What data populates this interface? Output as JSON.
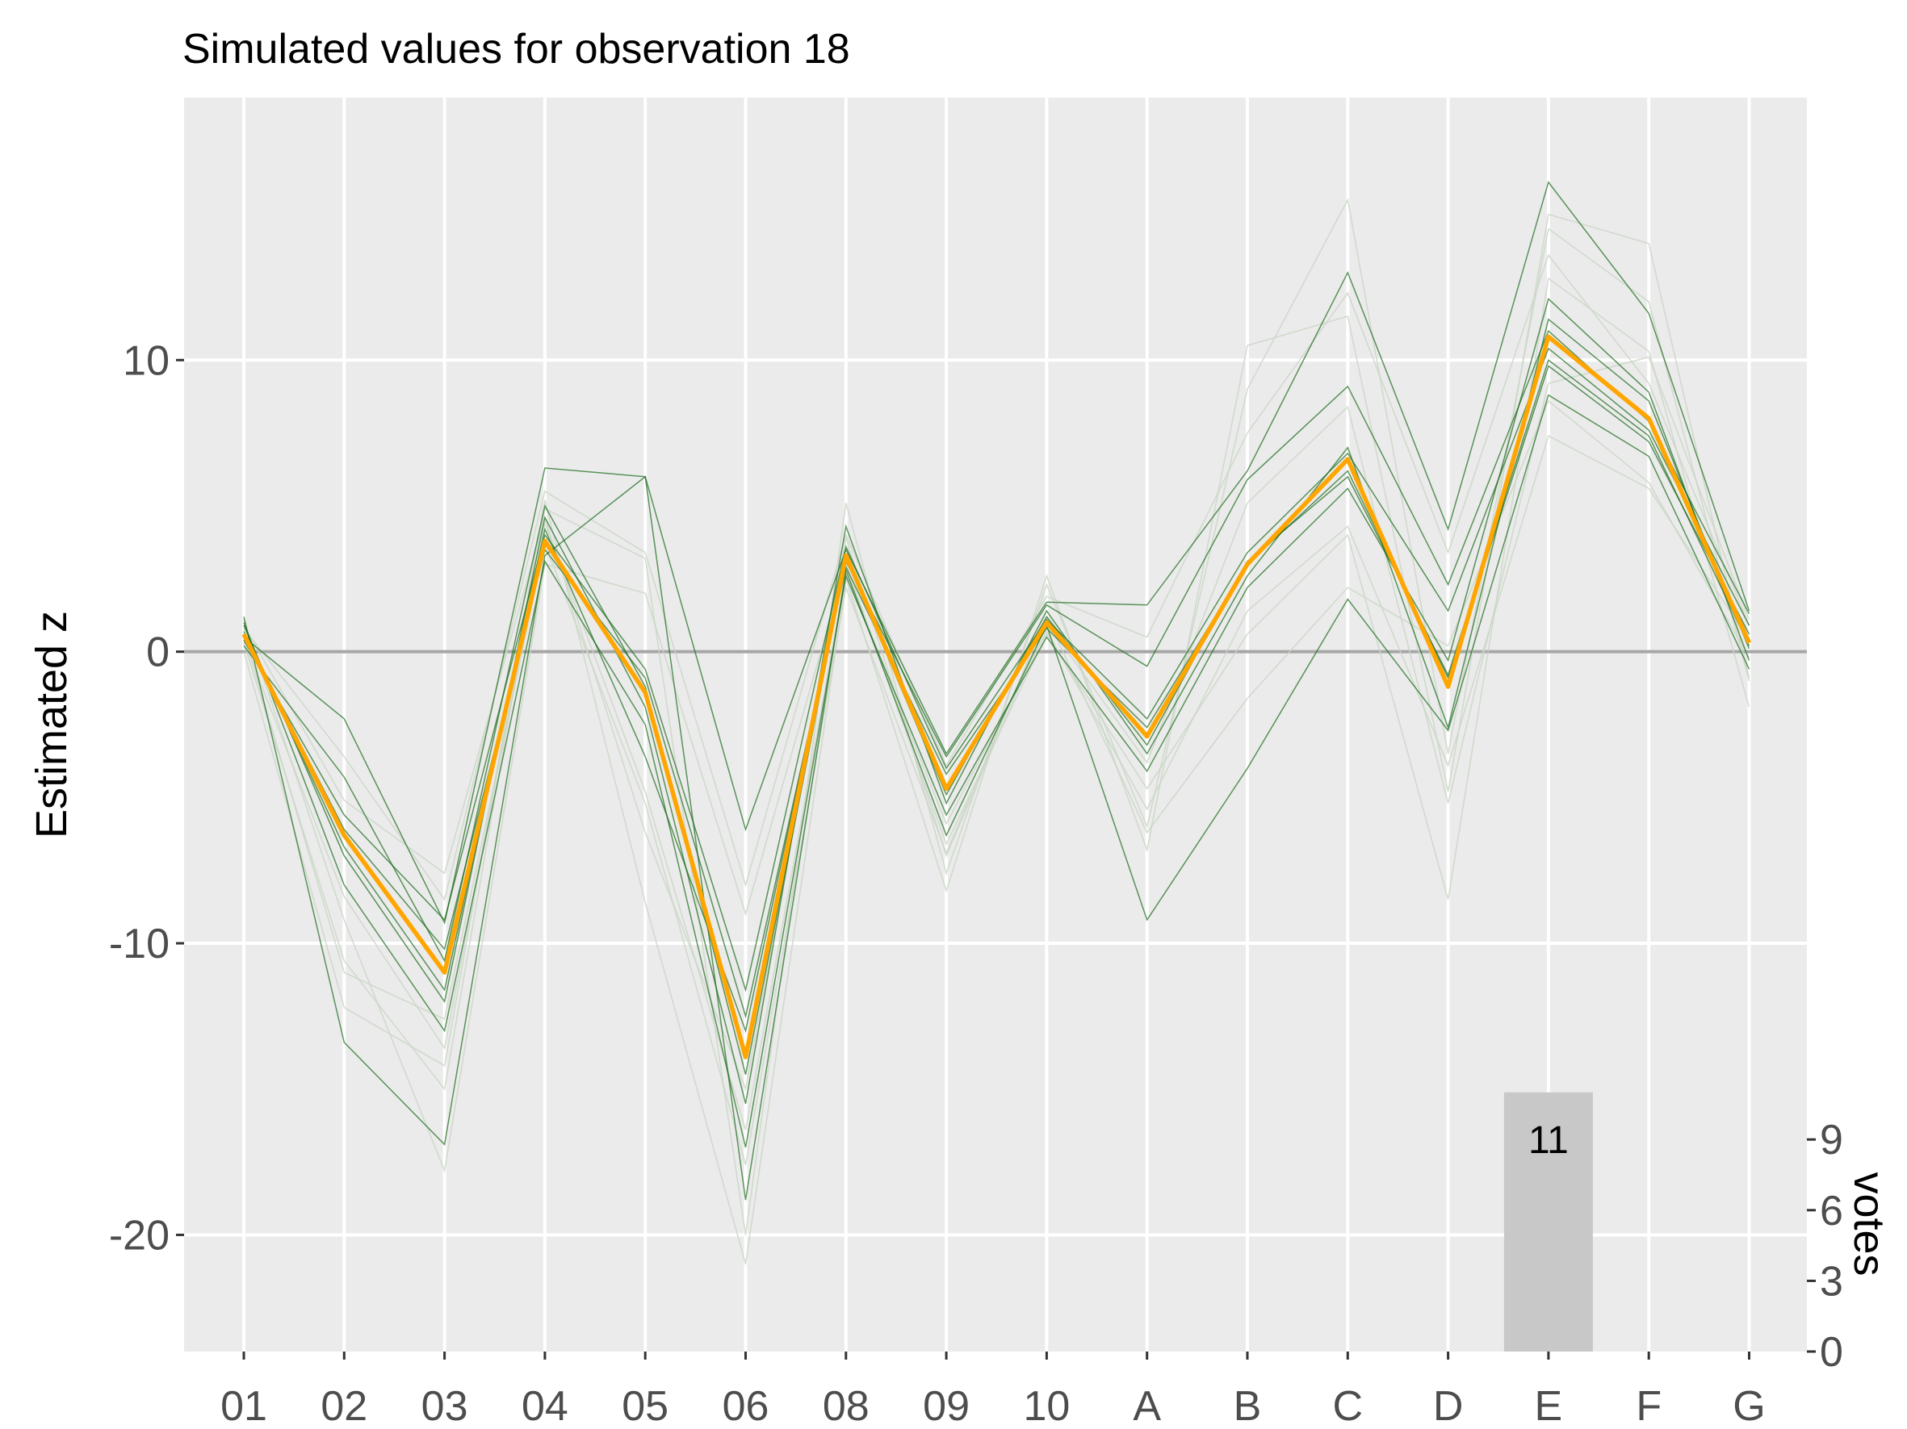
{
  "chart_data": {
    "type": "line",
    "title": "Simulated values for observation 18",
    "ylabel": "Estimated z",
    "y2label": "votes",
    "x": [
      "01",
      "02",
      "03",
      "04",
      "05",
      "06",
      "08",
      "09",
      "10",
      "A",
      "B",
      "C",
      "D",
      "E",
      "F",
      "G"
    ],
    "y_ticks": [
      10,
      0,
      -10,
      -20
    ],
    "y_tick_labels": [
      "10",
      "0",
      "-10",
      "-20"
    ],
    "ylim": [
      -24,
      19
    ],
    "y2_ticks": [
      0,
      3,
      6,
      9
    ],
    "y2_tick_labels": [
      "0",
      "3",
      "6",
      "9"
    ],
    "y2lim": [
      0,
      11
    ],
    "grid": true,
    "reference_line": 0,
    "colors": {
      "panel": "#ebebeb",
      "grid": "#ffffff",
      "reference": "#a6a6a6",
      "highlight": "#ffa500",
      "sim_dark": "#1a6b1a",
      "sim_light": "#c9d6c6",
      "bar": "#c8c8c8"
    },
    "highlight_series": [
      0.6,
      -6.3,
      -11.0,
      3.8,
      -1.4,
      -13.9,
      3.3,
      -4.7,
      1.0,
      -2.9,
      3.0,
      6.6,
      -1.2,
      10.8,
      8.0,
      0.3
    ],
    "simulations_dark": [
      [
        0.6,
        -6.1,
        -10.2,
        3.5,
        -0.9,
        -12.5,
        2.9,
        -4.2,
        0.8,
        -2.6,
        3.0,
        6.2,
        -0.9,
        9.8,
        7.2,
        0.6
      ],
      [
        0.9,
        -7.0,
        -12.0,
        4.6,
        -1.9,
        -15.5,
        4.3,
        -5.2,
        1.4,
        -3.5,
        2.6,
        7.0,
        -2.6,
        11.4,
        8.6,
        0.1
      ],
      [
        0.4,
        -5.6,
        -9.2,
        4.0,
        -0.6,
        -11.6,
        3.6,
        -4.0,
        1.1,
        -2.3,
        3.4,
        6.8,
        1.4,
        10.4,
        7.6,
        0.9
      ],
      [
        1.0,
        -8.0,
        -13.0,
        3.1,
        -2.5,
        -17.0,
        2.6,
        -5.6,
        0.5,
        -4.1,
        2.2,
        5.6,
        -0.3,
        12.1,
        8.9,
        -0.3
      ],
      [
        0.2,
        -4.3,
        -10.6,
        5.0,
        -1.2,
        -14.5,
        3.1,
        -3.6,
        1.6,
        -0.5,
        5.9,
        9.1,
        2.3,
        11.0,
        7.9,
        1.3
      ],
      [
        1.2,
        -13.4,
        -16.9,
        3.3,
        6.0,
        -18.8,
        2.8,
        -6.3,
        0.9,
        -9.2,
        -4.0,
        1.8,
        -2.7,
        8.8,
        6.7,
        -0.6
      ],
      [
        0.5,
        -2.3,
        -9.3,
        6.3,
        6.0,
        -6.1,
        3.5,
        -3.5,
        1.7,
        1.6,
        6.2,
        13.0,
        4.2,
        16.1,
        11.6,
        1.4
      ],
      [
        0.7,
        -6.7,
        -11.6,
        4.2,
        -3.6,
        -13.0,
        3.2,
        -4.9,
        1.2,
        -3.2,
        3.1,
        6.0,
        -0.8,
        10.0,
        7.4,
        0.2
      ]
    ],
    "simulations_light": [
      [
        0.3,
        -10.6,
        -15.0,
        4.9,
        3.2,
        -20.0,
        5.1,
        -7.6,
        2.3,
        -6.0,
        9.0,
        15.5,
        -3.5,
        14.5,
        12.0,
        -1.0
      ],
      [
        1.1,
        -9.2,
        -17.8,
        3.0,
        2.0,
        -9.0,
        3.0,
        -6.6,
        0.6,
        -4.7,
        0.6,
        4.0,
        -8.5,
        12.8,
        10.3,
        -1.9
      ],
      [
        0.0,
        -12.2,
        -14.2,
        5.2,
        -8.6,
        -21.0,
        2.5,
        -8.2,
        2.6,
        -6.8,
        10.5,
        11.5,
        -4.8,
        15.0,
        14.0,
        -0.9
      ],
      [
        0.8,
        -3.6,
        -8.5,
        5.5,
        3.4,
        -8.0,
        4.0,
        -3.9,
        1.9,
        0.5,
        7.5,
        12.3,
        3.4,
        13.6,
        9.2,
        0.9
      ],
      [
        0.4,
        -8.4,
        -13.6,
        4.4,
        -4.8,
        -16.4,
        2.7,
        -5.9,
        0.7,
        -5.4,
        1.4,
        4.3,
        -3.9,
        7.4,
        5.6,
        0.4
      ],
      [
        0.9,
        -5.1,
        -7.6,
        4.6,
        -6.2,
        -15.0,
        3.9,
        -7.0,
        1.0,
        -3.8,
        5.1,
        8.4,
        -5.2,
        9.2,
        10.1,
        1.1
      ],
      [
        0.6,
        -11.0,
        -12.6,
        3.7,
        -5.2,
        -17.6,
        2.2,
        -6.9,
        1.2,
        -6.2,
        -1.6,
        2.2,
        0.2,
        8.6,
        5.8,
        -0.2
      ]
    ],
    "bars": [
      {
        "category": "E",
        "value": 11,
        "label": "11"
      }
    ]
  }
}
